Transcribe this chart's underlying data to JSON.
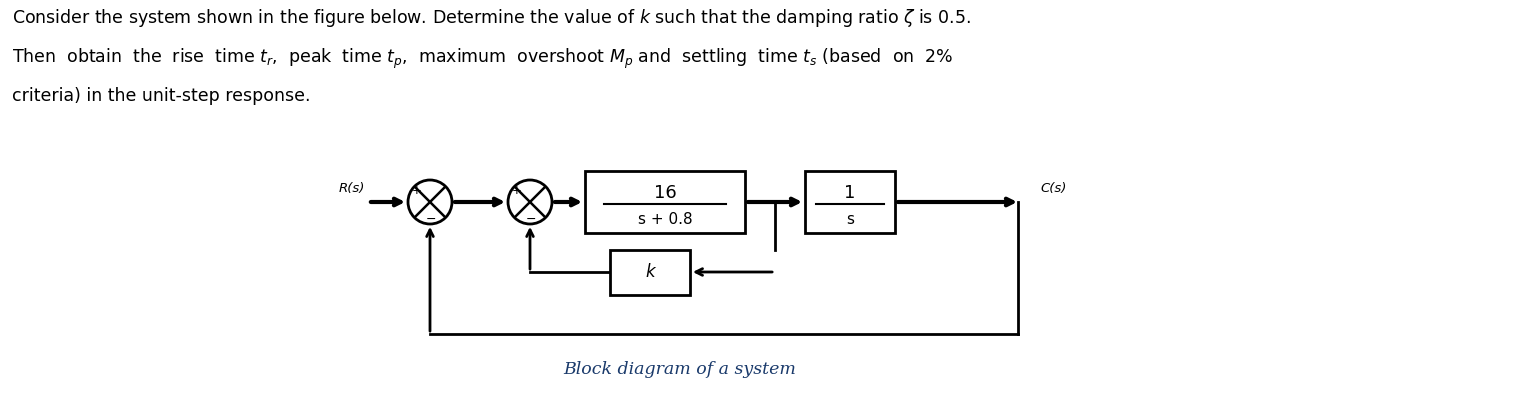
{
  "bg_color": "#ffffff",
  "text_color": "#000000",
  "caption_color": "#1a3a6b",
  "block1_num": "16",
  "block1_den": "s + 0.8",
  "block2_num": "1",
  "block2_den": "s",
  "feedback_label": "k",
  "Rs_label": "R(s)",
  "Cs_label": "C(s)",
  "caption": "Block diagram of a system",
  "line1": "Consider the system shown in the figure below. Determine the value of $k$ such that the damping ratio $\\zeta$ is 0.5.",
  "line2": "Then  obtain  the  rise  time $t_r$,  peak  time $t_p$,  maximum  overshoot $M_p$ and  settling  time $t_s$ (based  on  2%",
  "line3": "criteria) in the unit-step response.",
  "lw": 2.0,
  "arrow_lw": 2.0,
  "r_sum": 0.22
}
